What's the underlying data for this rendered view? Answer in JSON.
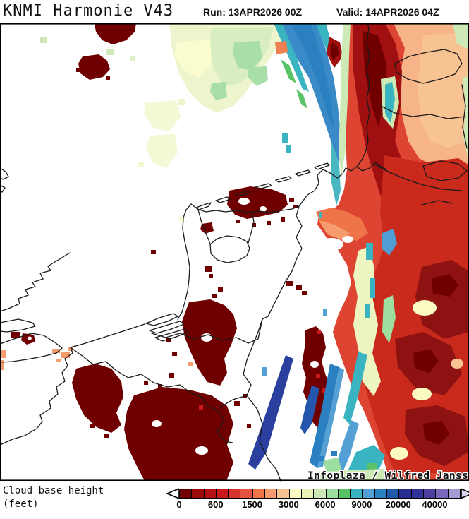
{
  "header": {
    "title": "KNMI Harmonie V43",
    "run_label": "Run: 13APR2026 00Z",
    "valid_label": "Valid: 14APR2026 04Z"
  },
  "map": {
    "attribution": "Infoplaza / Wilfred Janssen",
    "sea_color": "#ffffff",
    "coastline_color": "#1a1a1a"
  },
  "legend": {
    "label_line1": "Cloud base height",
    "label_line2": "(feet)",
    "tick_labels": [
      "0",
      "600",
      "1500",
      "3000",
      "6000",
      "9000",
      "20000",
      "40000"
    ],
    "colors": [
      "#700000",
      "#9c0a0a",
      "#b51218",
      "#c81a1a",
      "#d7342b",
      "#e55340",
      "#ef7448",
      "#f79c6c",
      "#f8c392",
      "#fafac1",
      "#eaf4b7",
      "#cdeab6",
      "#9cdf9e",
      "#59c267",
      "#3ab4c0",
      "#54a0d5",
      "#2a80c0",
      "#2159aa",
      "#282d90",
      "#32309a",
      "#4c3fa0",
      "#7b68bd",
      "#a49bd5"
    ],
    "arrow_left_color": "#ffffff",
    "arrow_right_color": "#d8d4ef",
    "units": "feet",
    "type": "heatmap"
  }
}
